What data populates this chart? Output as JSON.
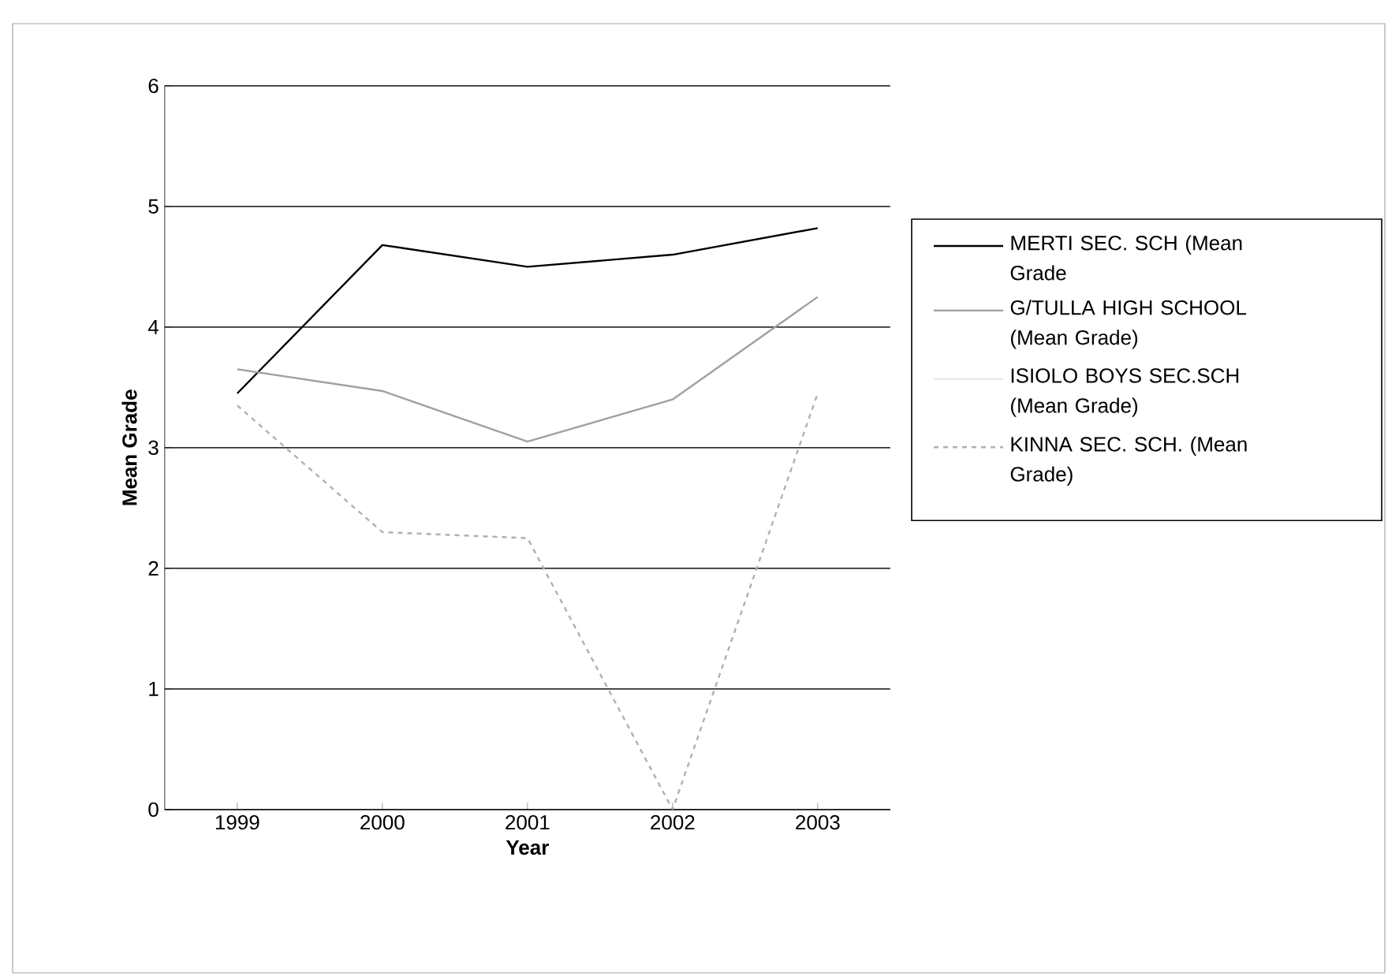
{
  "chart_data": {
    "type": "line",
    "xlabel": "Year",
    "ylabel": "Mean Grade",
    "categories": [
      "1999",
      "2000",
      "2001",
      "2002",
      "2003"
    ],
    "series": [
      {
        "name": "MERTI SEC. SCH (Mean Grade",
        "color": "#000000",
        "values": [
          3.45,
          4.68,
          4.5,
          4.6,
          4.82
        ]
      },
      {
        "name": "G/TULLA HIGH SCHOOL (Mean Grade)",
        "color": "#a0a0a0",
        "values": [
          3.65,
          3.47,
          3.05,
          3.4,
          4.25
        ]
      },
      {
        "name": "ISIOLO BOYS SEC.SCH (Mean Grade)",
        "color": "#e6e6e6",
        "values": [
          null,
          null,
          null,
          null,
          null
        ]
      },
      {
        "name": "KINNA SEC. SCH. (Mean Grade)",
        "color": "#b0b0b0",
        "line_style": "dashed",
        "values": [
          3.35,
          2.3,
          2.25,
          0,
          3.45
        ]
      }
    ],
    "ylim": [
      0,
      6
    ],
    "yticks": [
      0,
      1,
      2,
      3,
      4,
      5,
      6
    ],
    "grid": "y",
    "legend": "right",
    "marker": "none"
  }
}
